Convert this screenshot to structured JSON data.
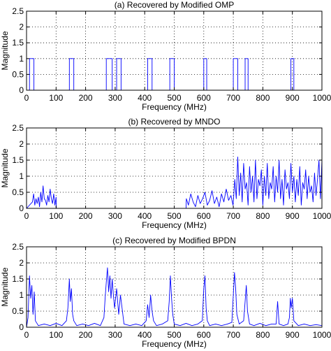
{
  "figure": {
    "accent_color": "#0000ff"
  },
  "chart_data": [
    {
      "type": "line",
      "title": "(a) Recovered by Modified OMP",
      "xlabel": "Frequency (MHz)",
      "ylabel": "Magnitude",
      "xlim": [
        0,
        1000
      ],
      "ylim": [
        0,
        2.5
      ],
      "xticks": [
        "0",
        "100",
        "200",
        "300",
        "400",
        "500",
        "600",
        "700",
        "800",
        "900",
        "1000"
      ],
      "yticks": [
        "0",
        "0.5",
        "1",
        "1.5",
        "2",
        "2.5"
      ],
      "grid": true,
      "series": [
        {
          "color": "#0000ff",
          "x": [
            0,
            10,
            10,
            25,
            25,
            145,
            145,
            160,
            160,
            270,
            270,
            290,
            290,
            305,
            305,
            320,
            320,
            410,
            410,
            425,
            425,
            485,
            485,
            500,
            500,
            600,
            600,
            610,
            610,
            700,
            700,
            715,
            715,
            740,
            740,
            750,
            750,
            895,
            895,
            905,
            905,
            1000
          ],
          "y": [
            0,
            0,
            1,
            1,
            0,
            0,
            1,
            1,
            0,
            0,
            1,
            1,
            0,
            0,
            1,
            1,
            0,
            0,
            1,
            1,
            0,
            0,
            1,
            1,
            0,
            0,
            1,
            1,
            0,
            0,
            1,
            1,
            0,
            0,
            1,
            1,
            0,
            0,
            1,
            1,
            0,
            0
          ]
        }
      ]
    },
    {
      "type": "line",
      "title": "(b) Recovered by MNDO",
      "xlabel": "Frequency (MHz)",
      "ylabel": "Magnitude",
      "xlim": [
        0,
        1000
      ],
      "ylim": [
        0,
        2.5
      ],
      "xticks": [
        "0",
        "100",
        "200",
        "300",
        "400",
        "500",
        "600",
        "700",
        "800",
        "900",
        "1000"
      ],
      "yticks": [
        "0",
        "0.5",
        "1",
        "1.5",
        "2",
        "2.5"
      ],
      "grid": true,
      "series": [
        {
          "color": "#0000ff",
          "x": [
            0,
            20,
            24,
            28,
            32,
            36,
            40,
            44,
            48,
            52,
            56,
            60,
            64,
            68,
            72,
            76,
            80,
            84,
            88,
            92,
            96,
            100,
            101,
            540,
            541,
            548,
            556,
            564,
            572,
            580,
            588,
            596,
            604,
            612,
            620,
            628,
            636,
            644,
            652,
            660,
            668,
            676,
            684,
            692,
            699,
            700,
            705,
            710,
            715,
            720,
            725,
            730,
            735,
            740,
            745,
            750,
            755,
            760,
            765,
            770,
            775,
            780,
            785,
            790,
            795,
            800,
            805,
            810,
            815,
            820,
            825,
            830,
            835,
            840,
            845,
            850,
            855,
            860,
            865,
            870,
            875,
            880,
            885,
            890,
            895,
            900,
            905,
            910,
            915,
            920,
            925,
            930,
            935,
            940,
            945,
            950,
            955,
            960,
            965,
            970,
            975,
            980,
            985,
            990,
            995,
            1000
          ],
          "y": [
            0,
            0.2,
            0.45,
            0.1,
            0.3,
            0.15,
            0.35,
            0.05,
            0.5,
            0.2,
            0.7,
            0.3,
            0.25,
            0.1,
            0.4,
            0.2,
            0.6,
            0.3,
            0.15,
            0.45,
            0.1,
            0.35,
            0,
            0,
            0.3,
            0.1,
            0.45,
            0.2,
            0.05,
            0.4,
            0.15,
            0.3,
            0.5,
            0.1,
            0.25,
            0.55,
            0.15,
            0.35,
            0.05,
            0.45,
            0.2,
            0.6,
            0.25,
            0.4,
            0.1,
            0.2,
            0.9,
            0.3,
            1.6,
            0.4,
            1.1,
            0.2,
            1.4,
            0.6,
            0.8,
            0.1,
            1.3,
            0.5,
            1.0,
            0.2,
            1.5,
            0.3,
            0.9,
            0.7,
            1.2,
            0.1,
            1.0,
            0.4,
            1.4,
            0.3,
            0.8,
            0.6,
            1.3,
            0.2,
            1.0,
            0.5,
            1.5,
            0.3,
            0.9,
            0.1,
            1.2,
            0.6,
            0.8,
            0.3,
            1.4,
            0.5,
            1.0,
            0.2,
            0.9,
            0.4,
            1.3,
            0.1,
            0.8,
            0.6,
            1.2,
            0.3,
            1.0,
            0.5,
            0.7,
            0.2,
            1.1,
            0.4,
            0.9,
            1.5,
            0.3,
            1.5
          ]
        }
      ]
    },
    {
      "type": "line",
      "title": "(c) Recovered by Modified BPDN",
      "xlabel": "Frequency (MHz)",
      "ylabel": "Magnitude",
      "xlim": [
        0,
        1000
      ],
      "ylim": [
        0,
        2.5
      ],
      "xticks": [
        "0",
        "100",
        "200",
        "300",
        "400",
        "500",
        "600",
        "700",
        "800",
        "900",
        "1000"
      ],
      "yticks": [
        "0",
        "0.5",
        "1",
        "1.5",
        "2",
        "2.5"
      ],
      "grid": true,
      "series": [
        {
          "color": "#0000ff",
          "x": [
            0,
            5,
            10,
            14,
            18,
            22,
            26,
            30,
            40,
            60,
            80,
            100,
            120,
            135,
            140,
            145,
            148,
            152,
            156,
            160,
            170,
            190,
            210,
            230,
            250,
            262,
            266,
            270,
            274,
            278,
            282,
            286,
            290,
            294,
            298,
            305,
            312,
            318,
            330,
            350,
            370,
            390,
            405,
            410,
            415,
            420,
            425,
            430,
            440,
            460,
            478,
            483,
            487,
            491,
            495,
            500,
            520,
            540,
            560,
            580,
            595,
            600,
            604,
            608,
            612,
            620,
            640,
            660,
            680,
            695,
            700,
            704,
            708,
            712,
            720,
            735,
            740,
            744,
            748,
            755,
            770,
            790,
            810,
            830,
            845,
            850,
            855,
            870,
            885,
            890,
            893,
            896,
            900,
            905,
            920,
            940,
            960,
            980,
            1000
          ],
          "y": [
            0,
            0.3,
            1.6,
            0.9,
            1.3,
            0.4,
            1.1,
            0.2,
            0.05,
            0.1,
            0.05,
            0.12,
            0.05,
            0.2,
            0.6,
            1.5,
            0.8,
            1.2,
            0.4,
            0.2,
            0.05,
            0.1,
            0.05,
            0.12,
            0.05,
            0.3,
            0.9,
            1.4,
            1.85,
            1.1,
            1.6,
            0.9,
            1.5,
            1.0,
            0.6,
            1.2,
            0.4,
            1.0,
            0.1,
            0.05,
            0.1,
            0.05,
            0.2,
            0.7,
            0.3,
            1.0,
            0.5,
            0.2,
            0.05,
            0.1,
            0.2,
            0.8,
            1.6,
            0.9,
            0.4,
            0.1,
            0.05,
            0.12,
            0.05,
            0.1,
            0.2,
            1.2,
            1.6,
            0.6,
            0.2,
            0.05,
            0.1,
            0.05,
            0.1,
            0.15,
            1.0,
            1.7,
            1.2,
            0.4,
            0.1,
            0.2,
            0.8,
            1.3,
            0.5,
            0.1,
            0.05,
            0.12,
            0.05,
            0.1,
            0.1,
            0.8,
            0.1,
            0.05,
            0.1,
            0.3,
            0.9,
            0.6,
            0.9,
            0.2,
            0.05,
            0.1,
            0.05,
            0.08,
            0.05
          ]
        }
      ]
    }
  ]
}
